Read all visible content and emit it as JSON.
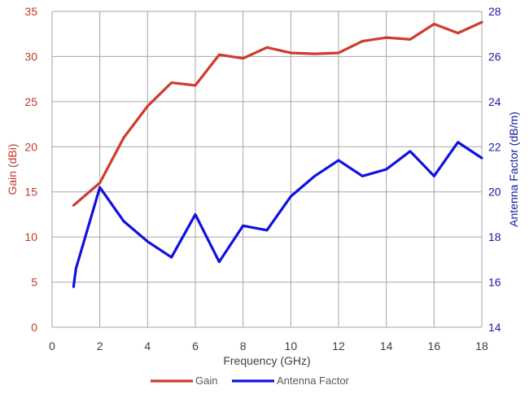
{
  "chart_data": {
    "type": "line",
    "title": "",
    "xlabel": "Frequency (GHz)",
    "ylabel_left": "Gain (dBi)",
    "ylabel_right": "Antenna Factor (dB/m)",
    "xlim": [
      0,
      18
    ],
    "ylim_left": [
      0,
      35
    ],
    "ylim_right": [
      14,
      28
    ],
    "x_ticks": [
      0,
      2,
      4,
      6,
      8,
      10,
      12,
      14,
      16,
      18
    ],
    "y_ticks_left": [
      0,
      5,
      10,
      15,
      20,
      25,
      30,
      35
    ],
    "y_ticks_right": [
      14,
      16,
      18,
      20,
      22,
      24,
      26,
      28
    ],
    "grid": true,
    "legend_position": "bottom",
    "series": [
      {
        "name": "Gain",
        "axis": "left",
        "color": "#d03a2e",
        "x": [
          0.9,
          2,
          3,
          4,
          5,
          6,
          7,
          8,
          9,
          10,
          11,
          12,
          13,
          14,
          15,
          16,
          17,
          18
        ],
        "y": [
          13.5,
          16.0,
          21.0,
          24.5,
          27.1,
          26.8,
          30.2,
          29.8,
          31.0,
          30.4,
          30.3,
          30.4,
          31.7,
          32.1,
          31.9,
          33.6,
          32.6,
          33.8
        ]
      },
      {
        "name": "Antenna Factor",
        "axis": "right",
        "color": "#1010e0",
        "x": [
          0.9,
          1.0,
          2,
          3,
          4,
          5,
          6,
          7,
          8,
          9,
          10,
          11,
          12,
          13,
          14,
          15,
          16,
          17,
          18
        ],
        "y": [
          15.8,
          16.6,
          20.2,
          18.7,
          17.8,
          17.1,
          19.0,
          16.9,
          18.5,
          18.3,
          19.8,
          20.7,
          21.4,
          20.7,
          21.0,
          21.8,
          20.7,
          22.2,
          21.5
        ]
      }
    ],
    "colors": {
      "left_axis_text": "#c0392b",
      "right_axis_text": "#1a1aa6",
      "tick_text_x": "#404040",
      "grid": "#a6a6a6"
    }
  }
}
